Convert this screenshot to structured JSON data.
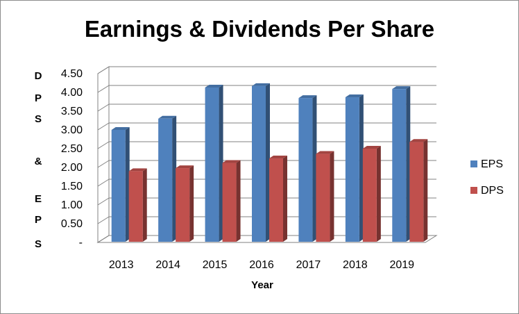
{
  "chart_data": {
    "type": "bar",
    "title": "Earnings & Dividends Per Share",
    "xlabel": "Year",
    "ylabel_letters": [
      "D",
      "P",
      "S",
      "&",
      "E",
      "P",
      "S"
    ],
    "categories": [
      "2013",
      "2014",
      "2015",
      "2016",
      "2017",
      "2018",
      "2019"
    ],
    "series": [
      {
        "name": "EPS",
        "color": "#4f81bd",
        "values": [
          3.0,
          3.3,
          4.13,
          4.17,
          3.85,
          3.87,
          4.09
        ]
      },
      {
        "name": "DPS",
        "color": "#c0504d",
        "values": [
          1.9,
          1.98,
          2.12,
          2.24,
          2.36,
          2.5,
          2.68
        ]
      }
    ],
    "yticks": [
      "-",
      "0.50",
      "1.00",
      "1.50",
      "2.00",
      "2.50",
      "3.00",
      "3.50",
      "4.00",
      "4.50"
    ],
    "ylim": [
      0,
      4.5
    ],
    "grid": true,
    "legend_position": "right",
    "style": "3d-clustered-column"
  }
}
